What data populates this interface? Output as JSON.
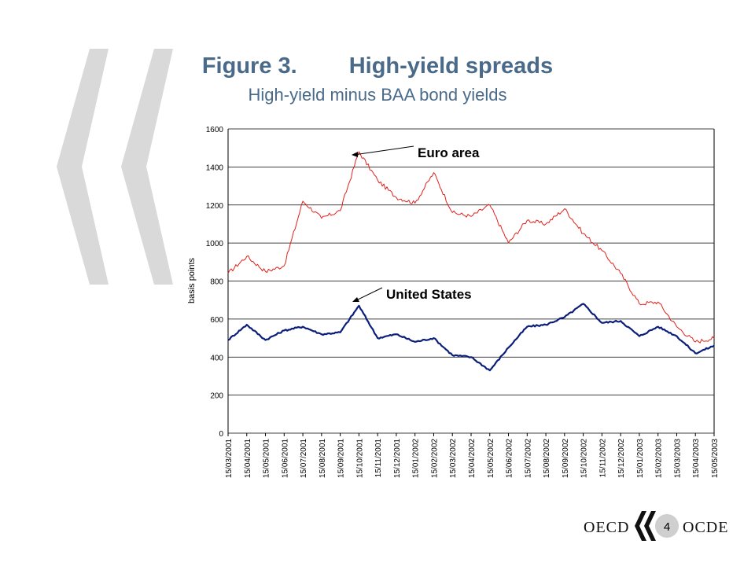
{
  "title": {
    "figure_label": "Figure 3.",
    "main": "High-yield spreads",
    "subtitle": "High-yield minus BAA bond yields"
  },
  "footer": {
    "logo_left": "OECD",
    "logo_right": "OCDE",
    "page_number": "4"
  },
  "colors": {
    "title": "#4a6a8a",
    "euro_line": "#e0211b",
    "us_line": "#0b1e7a",
    "chevron": "#d9d9d9"
  },
  "chart_data": {
    "type": "line",
    "ylabel": "basis points",
    "xlabel": "",
    "ylim": [
      0,
      1600
    ],
    "yticks": [
      0,
      200,
      400,
      600,
      800,
      1000,
      1200,
      1400,
      1600
    ],
    "grid": true,
    "categories": [
      "15/03/2001",
      "15/04/2001",
      "15/05/2001",
      "15/06/2001",
      "15/07/2001",
      "15/08/2001",
      "15/09/2001",
      "15/10/2001",
      "15/11/2001",
      "15/12/2001",
      "15/01/2002",
      "15/02/2002",
      "15/03/2002",
      "15/04/2002",
      "15/05/2002",
      "15/06/2002",
      "15/07/2002",
      "15/08/2002",
      "15/09/2002",
      "15/10/2002",
      "15/11/2002",
      "15/12/2002",
      "15/01/2003",
      "15/02/2003",
      "15/03/2003",
      "15/04/2003",
      "15/05/2003"
    ],
    "series": [
      {
        "name": "Euro area",
        "values": [
          840,
          930,
          850,
          880,
          1220,
          1130,
          1170,
          1480,
          1330,
          1240,
          1210,
          1370,
          1160,
          1140,
          1200,
          1000,
          1120,
          1100,
          1180,
          1050,
          960,
          840,
          680,
          690,
          560,
          480,
          500
        ]
      },
      {
        "name": "United States",
        "values": [
          490,
          570,
          490,
          540,
          560,
          520,
          530,
          670,
          500,
          520,
          480,
          500,
          410,
          400,
          330,
          450,
          560,
          570,
          610,
          680,
          580,
          590,
          510,
          560,
          510,
          420,
          460
        ]
      }
    ],
    "annotations": [
      "Euro area",
      "United States"
    ]
  }
}
